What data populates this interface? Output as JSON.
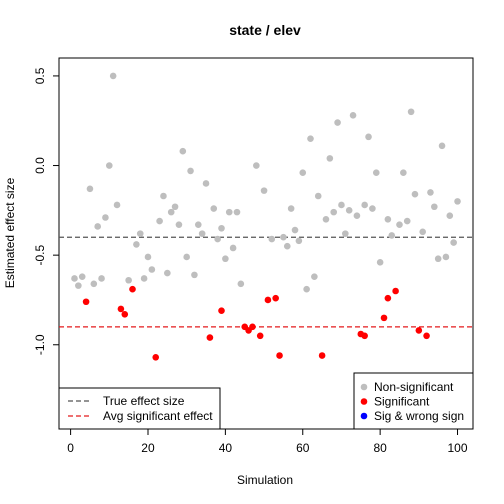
{
  "chart_data": {
    "type": "scatter",
    "title": "state / elev",
    "xlabel": "Simulation",
    "ylabel": "Estimated effect size",
    "xlim": [
      -3,
      104
    ],
    "ylim": [
      -1.47,
      0.6
    ],
    "x_ticks": [
      0,
      20,
      40,
      60,
      80,
      100
    ],
    "y_ticks": [
      -1.0,
      -0.5,
      0.0,
      0.5
    ],
    "y_tick_labels": [
      "-1.0",
      "-0.5",
      "0.0",
      "0.5"
    ],
    "reference_lines": [
      {
        "name": "True effect size",
        "y": -0.4,
        "color": "#555555",
        "style": "dashed"
      },
      {
        "name": "Avg significant effect",
        "y": -0.9,
        "color": "#e41a1c",
        "style": "dashed"
      }
    ],
    "series": [
      {
        "name": "Non-significant",
        "color": "#bebebe",
        "points": [
          [
            1,
            -0.63
          ],
          [
            2,
            -0.67
          ],
          [
            3,
            -0.62
          ],
          [
            5,
            -0.13
          ],
          [
            6,
            -0.66
          ],
          [
            7,
            -0.34
          ],
          [
            8,
            -0.63
          ],
          [
            9,
            -0.29
          ],
          [
            10,
            0.0
          ],
          [
            11,
            0.5
          ],
          [
            12,
            -0.22
          ],
          [
            15,
            -0.64
          ],
          [
            17,
            -0.44
          ],
          [
            18,
            -0.38
          ],
          [
            19,
            -0.63
          ],
          [
            20,
            -0.51
          ],
          [
            21,
            -0.58
          ],
          [
            23,
            -0.31
          ],
          [
            24,
            -0.17
          ],
          [
            25,
            -0.6
          ],
          [
            26,
            -0.26
          ],
          [
            27,
            -0.23
          ],
          [
            28,
            -0.33
          ],
          [
            29,
            0.08
          ],
          [
            30,
            -0.51
          ],
          [
            31,
            -0.03
          ],
          [
            32,
            -0.61
          ],
          [
            33,
            -0.33
          ],
          [
            34,
            -0.38
          ],
          [
            35,
            -0.1
          ],
          [
            37,
            -0.24
          ],
          [
            38,
            -0.41
          ],
          [
            39,
            -0.35
          ],
          [
            40,
            -0.52
          ],
          [
            41,
            -0.26
          ],
          [
            42,
            -0.46
          ],
          [
            43,
            -0.26
          ],
          [
            44,
            -0.66
          ],
          [
            48,
            0.0
          ],
          [
            50,
            -0.14
          ],
          [
            52,
            -0.41
          ],
          [
            55,
            -0.4
          ],
          [
            56,
            -0.45
          ],
          [
            57,
            -0.24
          ],
          [
            58,
            -0.36
          ],
          [
            59,
            -0.42
          ],
          [
            60,
            -0.04
          ],
          [
            61,
            -0.69
          ],
          [
            62,
            0.15
          ],
          [
            63,
            -0.62
          ],
          [
            64,
            -0.17
          ],
          [
            66,
            -0.3
          ],
          [
            67,
            0.04
          ],
          [
            68,
            -0.26
          ],
          [
            69,
            0.24
          ],
          [
            70,
            -0.22
          ],
          [
            71,
            -0.38
          ],
          [
            72,
            -0.25
          ],
          [
            73,
            0.28
          ],
          [
            74,
            -0.28
          ],
          [
            76,
            -0.22
          ],
          [
            77,
            0.16
          ],
          [
            78,
            -0.24
          ],
          [
            79,
            -0.04
          ],
          [
            80,
            -0.54
          ],
          [
            82,
            -0.3
          ],
          [
            83,
            -0.39
          ],
          [
            85,
            -0.33
          ],
          [
            86,
            -0.04
          ],
          [
            87,
            -0.31
          ],
          [
            88,
            0.3
          ],
          [
            89,
            -0.16
          ],
          [
            91,
            -0.37
          ],
          [
            93,
            -0.15
          ],
          [
            94,
            -0.23
          ],
          [
            95,
            -0.52
          ],
          [
            96,
            0.11
          ],
          [
            97,
            -0.51
          ],
          [
            98,
            -0.28
          ],
          [
            99,
            -0.43
          ],
          [
            100,
            -0.2
          ]
        ]
      },
      {
        "name": "Significant",
        "color": "#ff0000",
        "points": [
          [
            4,
            -0.76
          ],
          [
            13,
            -0.8
          ],
          [
            14,
            -0.83
          ],
          [
            16,
            -0.69
          ],
          [
            22,
            -1.07
          ],
          [
            36,
            -0.96
          ],
          [
            39,
            -0.81
          ],
          [
            45,
            -0.9
          ],
          [
            46,
            -0.92
          ],
          [
            47,
            -0.9
          ],
          [
            49,
            -0.95
          ],
          [
            51,
            -0.75
          ],
          [
            53,
            -0.74
          ],
          [
            54,
            -1.06
          ],
          [
            65,
            -1.06
          ],
          [
            75,
            -0.94
          ],
          [
            76,
            -0.95
          ],
          [
            81,
            -0.85
          ],
          [
            82,
            -0.74
          ],
          [
            84,
            -0.7
          ],
          [
            90,
            -0.92
          ],
          [
            92,
            -0.95
          ]
        ]
      },
      {
        "name": "Sig & wrong sign",
        "color": "#0000ff",
        "points": []
      }
    ]
  }
}
